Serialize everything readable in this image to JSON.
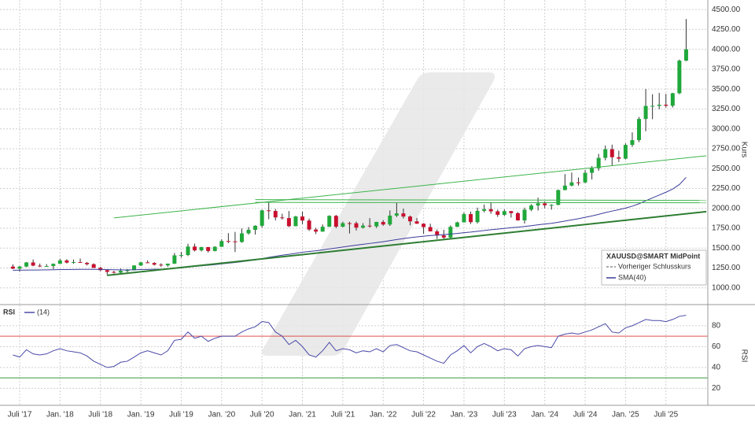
{
  "chart_data": [
    {
      "type": "candlestick",
      "title": "XAUUSD@SMART MidPoint",
      "legend_note": "Vorheriger Schlusskurs",
      "ylabel": "Kurs",
      "up_color": "#1fa83a",
      "down_color": "#c8102e",
      "grid": true,
      "ylim": [
        810,
        4620
      ],
      "yticks": [
        {
          "value": 1000,
          "label": "1000.00"
        },
        {
          "value": 1250,
          "label": "1250.00"
        },
        {
          "value": 1500,
          "label": "1500.00"
        },
        {
          "value": 1750,
          "label": "1750.00"
        },
        {
          "value": 2000,
          "label": "2000.00"
        },
        {
          "value": 2250,
          "label": "2250.00"
        },
        {
          "value": 2500,
          "label": "2500.00"
        },
        {
          "value": 2750,
          "label": "2750.00"
        },
        {
          "value": 3000,
          "label": "3000.00"
        },
        {
          "value": 3250,
          "label": "3250.00"
        },
        {
          "value": 3500,
          "label": "3500.00"
        },
        {
          "value": 3750,
          "label": "3750.00"
        },
        {
          "value": 4000,
          "label": "4000.00"
        },
        {
          "value": 4250,
          "label": "4250.00"
        },
        {
          "value": 4500,
          "label": "4500.00"
        }
      ],
      "xticks": [
        {
          "value": "2017-07",
          "label": "Juli '17"
        },
        {
          "value": "2018-01",
          "label": "Jan. '18"
        },
        {
          "value": "2018-07",
          "label": "Juli '18"
        },
        {
          "value": "2019-01",
          "label": "Jan. '19"
        },
        {
          "value": "2019-07",
          "label": "Juli '19"
        },
        {
          "value": "2020-01",
          "label": "Jan. '20"
        },
        {
          "value": "2020-07",
          "label": "Juli '20"
        },
        {
          "value": "2021-01",
          "label": "Jan. '21"
        },
        {
          "value": "2021-07",
          "label": "Juli '21"
        },
        {
          "value": "2022-01",
          "label": "Jan. '22"
        },
        {
          "value": "2022-07",
          "label": "Juli '22"
        },
        {
          "value": "2023-01",
          "label": "Jan. '23"
        },
        {
          "value": "2023-07",
          "label": "Juli '23"
        },
        {
          "value": "2024-01",
          "label": "Jan. '24"
        },
        {
          "value": "2024-07",
          "label": "Juli '24"
        },
        {
          "value": "2025-01",
          "label": "Jan. '25"
        },
        {
          "value": "2025-07",
          "label": "Juli '25"
        }
      ],
      "x": [
        "2017-06",
        "2017-07",
        "2017-08",
        "2017-09",
        "2017-10",
        "2017-11",
        "2017-12",
        "2018-01",
        "2018-02",
        "2018-03",
        "2018-04",
        "2018-05",
        "2018-06",
        "2018-07",
        "2018-08",
        "2018-09",
        "2018-10",
        "2018-11",
        "2018-12",
        "2019-01",
        "2019-02",
        "2019-03",
        "2019-04",
        "2019-05",
        "2019-06",
        "2019-07",
        "2019-08",
        "2019-09",
        "2019-10",
        "2019-11",
        "2019-12",
        "2020-01",
        "2020-02",
        "2020-03",
        "2020-04",
        "2020-05",
        "2020-06",
        "2020-07",
        "2020-08",
        "2020-09",
        "2020-10",
        "2020-11",
        "2020-12",
        "2021-01",
        "2021-02",
        "2021-03",
        "2021-04",
        "2021-05",
        "2021-06",
        "2021-07",
        "2021-08",
        "2021-09",
        "2021-10",
        "2021-11",
        "2021-12",
        "2022-01",
        "2022-02",
        "2022-03",
        "2022-04",
        "2022-05",
        "2022-06",
        "2022-07",
        "2022-08",
        "2022-09",
        "2022-10",
        "2022-11",
        "2022-12",
        "2023-01",
        "2023-02",
        "2023-03",
        "2023-04",
        "2023-05",
        "2023-06",
        "2023-07",
        "2023-08",
        "2023-09",
        "2023-10",
        "2023-11",
        "2023-12",
        "2024-01",
        "2024-02",
        "2024-03",
        "2024-04",
        "2024-05",
        "2024-06",
        "2024-07",
        "2024-08",
        "2024-09",
        "2024-10",
        "2024-11",
        "2024-12",
        "2025-01",
        "2025-02",
        "2025-03",
        "2025-04",
        "2025-05",
        "2025-06",
        "2025-07",
        "2025-08",
        "2025-09",
        "2025-10"
      ],
      "ohlc": [
        [
          1268,
          1296,
          1236,
          1242
        ],
        [
          1242,
          1275,
          1205,
          1268
        ],
        [
          1268,
          1326,
          1262,
          1320
        ],
        [
          1320,
          1357,
          1272,
          1280
        ],
        [
          1280,
          1306,
          1261,
          1270
        ],
        [
          1270,
          1299,
          1264,
          1275
        ],
        [
          1275,
          1307,
          1237,
          1303
        ],
        [
          1303,
          1366,
          1303,
          1345
        ],
        [
          1345,
          1361,
          1307,
          1318
        ],
        [
          1318,
          1356,
          1303,
          1325
        ],
        [
          1325,
          1369,
          1315,
          1315
        ],
        [
          1315,
          1326,
          1282,
          1298
        ],
        [
          1298,
          1309,
          1250,
          1252
        ],
        [
          1252,
          1265,
          1211,
          1223
        ],
        [
          1223,
          1225,
          1160,
          1201
        ],
        [
          1201,
          1214,
          1180,
          1192
        ],
        [
          1192,
          1243,
          1182,
          1215
        ],
        [
          1215,
          1237,
          1196,
          1222
        ],
        [
          1222,
          1284,
          1221,
          1282
        ],
        [
          1282,
          1326,
          1276,
          1321
        ],
        [
          1321,
          1346,
          1310,
          1313
        ],
        [
          1313,
          1324,
          1281,
          1292
        ],
        [
          1292,
          1310,
          1266,
          1283
        ],
        [
          1283,
          1306,
          1266,
          1305
        ],
        [
          1305,
          1439,
          1301,
          1409
        ],
        [
          1409,
          1453,
          1381,
          1413
        ],
        [
          1413,
          1555,
          1400,
          1520
        ],
        [
          1520,
          1557,
          1459,
          1472
        ],
        [
          1472,
          1517,
          1458,
          1513
        ],
        [
          1513,
          1516,
          1445,
          1464
        ],
        [
          1464,
          1524,
          1459,
          1517
        ],
        [
          1517,
          1611,
          1517,
          1589
        ],
        [
          1589,
          1689,
          1563,
          1585
        ],
        [
          1585,
          1704,
          1451,
          1577
        ],
        [
          1577,
          1747,
          1568,
          1686
        ],
        [
          1686,
          1765,
          1670,
          1730
        ],
        [
          1730,
          1788,
          1671,
          1781
        ],
        [
          1781,
          1984,
          1757,
          1975
        ],
        [
          1975,
          2075,
          1863,
          1967
        ],
        [
          1967,
          1992,
          1849,
          1886
        ],
        [
          1886,
          1933,
          1860,
          1878
        ],
        [
          1878,
          1966,
          1764,
          1776
        ],
        [
          1776,
          1906,
          1776,
          1898
        ],
        [
          1898,
          1959,
          1802,
          1847
        ],
        [
          1847,
          1872,
          1717,
          1734
        ],
        [
          1734,
          1756,
          1677,
          1708
        ],
        [
          1708,
          1798,
          1706,
          1769
        ],
        [
          1769,
          1913,
          1765,
          1906
        ],
        [
          1906,
          1917,
          1750,
          1770
        ],
        [
          1770,
          1832,
          1761,
          1814
        ],
        [
          1814,
          1832,
          1684,
          1813
        ],
        [
          1813,
          1834,
          1722,
          1757
        ],
        [
          1757,
          1814,
          1746,
          1783
        ],
        [
          1783,
          1877,
          1758,
          1774
        ],
        [
          1774,
          1831,
          1753,
          1829
        ],
        [
          1829,
          1853,
          1781,
          1797
        ],
        [
          1797,
          1974,
          1780,
          1909
        ],
        [
          1909,
          2070,
          1890,
          1937
        ],
        [
          1937,
          1998,
          1872,
          1897
        ],
        [
          1897,
          1910,
          1787,
          1837
        ],
        [
          1837,
          1879,
          1805,
          1807
        ],
        [
          1807,
          1814,
          1681,
          1765
        ],
        [
          1765,
          1808,
          1709,
          1711
        ],
        [
          1711,
          1735,
          1615,
          1660
        ],
        [
          1660,
          1730,
          1617,
          1633
        ],
        [
          1633,
          1786,
          1616,
          1768
        ],
        [
          1768,
          1833,
          1765,
          1824
        ],
        [
          1824,
          1949,
          1823,
          1928
        ],
        [
          1928,
          1960,
          1804,
          1827
        ],
        [
          1827,
          2009,
          1810,
          1969
        ],
        [
          1969,
          2048,
          1950,
          1990
        ],
        [
          1990,
          2079,
          1932,
          1963
        ],
        [
          1963,
          1984,
          1893,
          1919
        ],
        [
          1919,
          1987,
          1903,
          1965
        ],
        [
          1965,
          1968,
          1884,
          1940
        ],
        [
          1940,
          1953,
          1846,
          1849
        ],
        [
          1849,
          2009,
          1810,
          1983
        ],
        [
          1983,
          2052,
          1965,
          2036
        ],
        [
          2036,
          2135,
          1973,
          2063
        ],
        [
          2063,
          2088,
          2002,
          2039
        ],
        [
          2039,
          2052,
          1984,
          2044
        ],
        [
          2044,
          2236,
          2039,
          2230
        ],
        [
          2230,
          2431,
          2228,
          2286
        ],
        [
          2286,
          2450,
          2277,
          2327
        ],
        [
          2327,
          2388,
          2286,
          2326
        ],
        [
          2326,
          2483,
          2318,
          2447
        ],
        [
          2447,
          2531,
          2364,
          2503
        ],
        [
          2503,
          2685,
          2472,
          2635
        ],
        [
          2635,
          2790,
          2604,
          2744
        ],
        [
          2744,
          2801,
          2536,
          2643
        ],
        [
          2643,
          2726,
          2583,
          2625
        ],
        [
          2625,
          2817,
          2614,
          2798
        ],
        [
          2798,
          2956,
          2773,
          2858
        ],
        [
          2858,
          3149,
          2833,
          3124
        ],
        [
          3124,
          3500,
          2970,
          3288
        ],
        [
          3288,
          3435,
          3121,
          3289
        ],
        [
          3289,
          3452,
          3247,
          3303
        ],
        [
          3303,
          3439,
          3268,
          3290
        ],
        [
          3290,
          3453,
          3268,
          3448
        ],
        [
          3448,
          3871,
          3436,
          3858
        ],
        [
          3858,
          4381,
          3850,
          4000
        ]
      ],
      "series": [
        {
          "name": "SMA(40)",
          "color": "#3b3b9c",
          "values": [
            1222,
            1223,
            1224,
            1225,
            1226,
            1227,
            1228,
            1230,
            1231,
            1232,
            1233,
            1233,
            1233,
            1232,
            1230,
            1228,
            1227,
            1226,
            1228,
            1230,
            1232,
            1234,
            1236,
            1238,
            1245,
            1252,
            1262,
            1270,
            1278,
            1285,
            1293,
            1302,
            1311,
            1320,
            1330,
            1341,
            1352,
            1368,
            1384,
            1398,
            1411,
            1422,
            1435,
            1448,
            1458,
            1467,
            1478,
            1491,
            1502,
            1514,
            1526,
            1537,
            1548,
            1559,
            1570,
            1581,
            1594,
            1608,
            1620,
            1631,
            1641,
            1650,
            1658,
            1664,
            1670,
            1677,
            1685,
            1694,
            1702,
            1712,
            1722,
            1731,
            1739,
            1748,
            1757,
            1764,
            1772,
            1782,
            1793,
            1803,
            1812,
            1826,
            1840,
            1855,
            1870,
            1887,
            1905,
            1925,
            1947,
            1966,
            1984,
            2004,
            2028,
            2058,
            2096,
            2132,
            2168,
            2203,
            2243,
            2300,
            2390
          ]
        }
      ],
      "trendlines": [
        {
          "x": [
            "2018-09",
            "2026-01"
          ],
          "values": [
            1880,
            2661
          ],
          "color": "#3cb44b",
          "width": 1
        },
        {
          "x": [
            "2020-06",
            "2026-01"
          ],
          "values": [
            2110,
            2100
          ],
          "color": "#3cb44b",
          "width": 1
        },
        {
          "x": [
            "2020-06",
            "2026-01"
          ],
          "values": [
            2075,
            2070
          ],
          "color": "#3cb44b",
          "width": 1
        },
        {
          "x": [
            "2018-08",
            "2026-01"
          ],
          "values": [
            1158,
            1959
          ],
          "color": "#2e7d32",
          "width": 2
        }
      ]
    },
    {
      "type": "line",
      "title": "RSI",
      "ylabel": "RSI",
      "ylim": [
        6,
        98
      ],
      "yticks": [
        20,
        40,
        60,
        80
      ],
      "grid": true,
      "levels": [
        {
          "value": 70,
          "color": "#e05252"
        },
        {
          "value": 30,
          "color": "#3a9a3a"
        }
      ],
      "series": [
        {
          "name": "(14)",
          "color": "#4a4aa8",
          "values": [
            52,
            50,
            57,
            53,
            52,
            53,
            56,
            58,
            56,
            55,
            54,
            51,
            46,
            43,
            40,
            41,
            45,
            46,
            50,
            54,
            56,
            54,
            52,
            56,
            66,
            67,
            74,
            68,
            70,
            65,
            68,
            70,
            70,
            70,
            74,
            77,
            79,
            84,
            83,
            74,
            70,
            62,
            66,
            60,
            52,
            50,
            56,
            64,
            56,
            58,
            57,
            54,
            56,
            55,
            58,
            55,
            61,
            62,
            59,
            56,
            55,
            52,
            49,
            46,
            44,
            52,
            56,
            61,
            54,
            60,
            63,
            60,
            56,
            58,
            57,
            51,
            58,
            60,
            61,
            60,
            59,
            70,
            72,
            73,
            72,
            74,
            76,
            79,
            82,
            74,
            73,
            78,
            80,
            83,
            86,
            85,
            85,
            84,
            86,
            89,
            90
          ]
        }
      ]
    }
  ]
}
